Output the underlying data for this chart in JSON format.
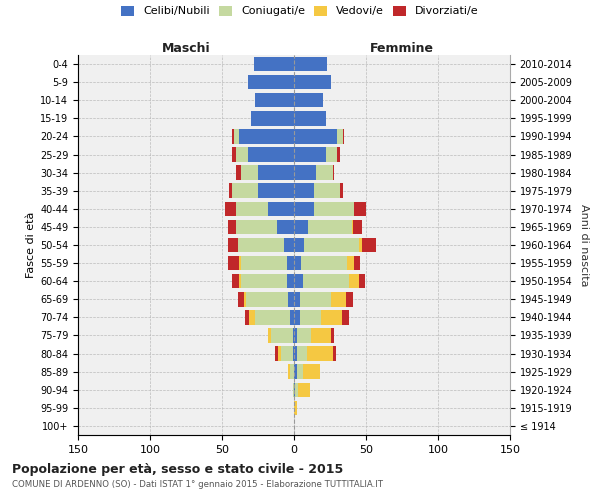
{
  "age_groups": [
    "100+",
    "95-99",
    "90-94",
    "85-89",
    "80-84",
    "75-79",
    "70-74",
    "65-69",
    "60-64",
    "55-59",
    "50-54",
    "45-49",
    "40-44",
    "35-39",
    "30-34",
    "25-29",
    "20-24",
    "15-19",
    "10-14",
    "5-9",
    "0-4"
  ],
  "birth_years": [
    "≤ 1914",
    "1915-1919",
    "1920-1924",
    "1925-1929",
    "1930-1934",
    "1935-1939",
    "1940-1944",
    "1945-1949",
    "1950-1954",
    "1955-1959",
    "1960-1964",
    "1965-1969",
    "1970-1974",
    "1975-1979",
    "1980-1984",
    "1985-1989",
    "1990-1994",
    "1995-1999",
    "2000-2004",
    "2005-2009",
    "2010-2014"
  ],
  "maschi": {
    "celibe": [
      0,
      0,
      0,
      0,
      1,
      1,
      3,
      4,
      5,
      5,
      7,
      12,
      18,
      25,
      25,
      32,
      38,
      30,
      27,
      32,
      28
    ],
    "coniugato": [
      0,
      0,
      1,
      3,
      8,
      15,
      24,
      29,
      32,
      32,
      32,
      28,
      22,
      18,
      12,
      8,
      4,
      0,
      0,
      0,
      0
    ],
    "vedovo": [
      0,
      0,
      0,
      1,
      2,
      2,
      4,
      2,
      1,
      1,
      0,
      0,
      0,
      0,
      0,
      0,
      0,
      0,
      0,
      0,
      0
    ],
    "divorziato": [
      0,
      0,
      0,
      0,
      2,
      0,
      3,
      4,
      5,
      8,
      7,
      6,
      8,
      2,
      3,
      3,
      1,
      0,
      0,
      0,
      0
    ]
  },
  "femmine": {
    "nubile": [
      0,
      0,
      1,
      2,
      2,
      2,
      4,
      4,
      6,
      5,
      7,
      10,
      14,
      14,
      15,
      22,
      30,
      22,
      20,
      26,
      23
    ],
    "coniugata": [
      0,
      0,
      2,
      4,
      7,
      10,
      15,
      22,
      32,
      32,
      38,
      30,
      28,
      18,
      12,
      8,
      4,
      0,
      0,
      0,
      0
    ],
    "vedova": [
      0,
      2,
      8,
      12,
      18,
      14,
      14,
      10,
      7,
      5,
      2,
      1,
      0,
      0,
      0,
      0,
      0,
      0,
      0,
      0,
      0
    ],
    "divorziata": [
      0,
      0,
      0,
      0,
      2,
      2,
      5,
      5,
      4,
      4,
      10,
      6,
      8,
      2,
      1,
      2,
      1,
      0,
      0,
      0,
      0
    ]
  },
  "colors": {
    "celibe": "#4472c4",
    "coniugato": "#c5d9a0",
    "vedovo": "#f5c842",
    "divorziato": "#c0282a"
  },
  "legend_labels": [
    "Celibi/Nubili",
    "Coniugati/e",
    "Vedovi/e",
    "Divorziati/e"
  ],
  "title": "Popolazione per età, sesso e stato civile - 2015",
  "subtitle": "COMUNE DI ARDENNO (SO) - Dati ISTAT 1° gennaio 2015 - Elaborazione TUTTITALIA.IT",
  "xlabel_left": "Maschi",
  "xlabel_right": "Femmine",
  "ylabel_left": "Fasce di età",
  "ylabel_right": "Anni di nascita",
  "xlim": 150,
  "bg_color": "#f0f0f0",
  "plot_bg": "#ffffff"
}
